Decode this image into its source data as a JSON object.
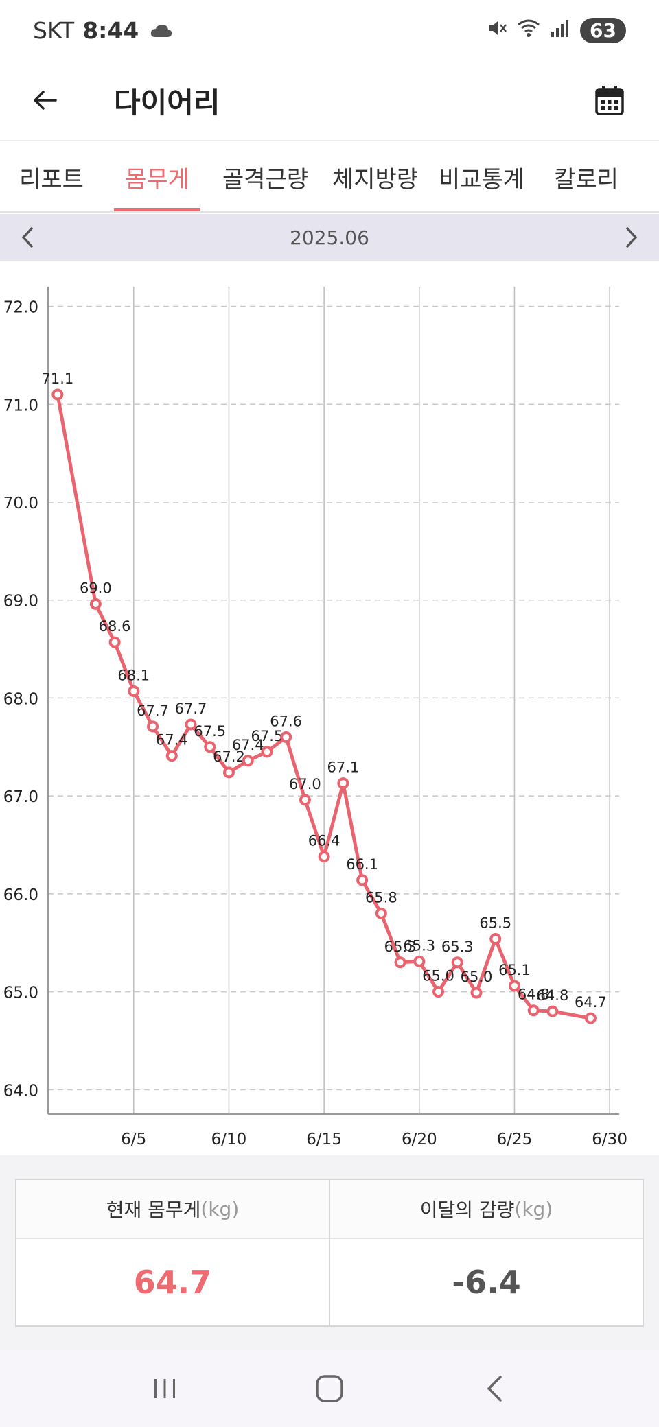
{
  "status": {
    "carrier": "SKT",
    "time": "8:44",
    "battery": "63",
    "weather_icon": "cloud-icon"
  },
  "header": {
    "title": "다이어리"
  },
  "tabs": [
    {
      "label": "리포트",
      "active": false
    },
    {
      "label": "몸무게",
      "active": true
    },
    {
      "label": "골격근량",
      "active": false
    },
    {
      "label": "체지방량",
      "active": false
    },
    {
      "label": "비교통계",
      "active": false
    },
    {
      "label": "칼로리",
      "active": false
    }
  ],
  "month": "2025.06",
  "chart_data": {
    "type": "line",
    "y_ticks": [
      "72.0",
      "71.0",
      "70.0",
      "69.0",
      "68.0",
      "67.0",
      "66.0",
      "65.0",
      "64.0"
    ],
    "x_ticks": [
      "6/5",
      "6/10",
      "6/15",
      "6/20",
      "6/25",
      "6/30"
    ],
    "x_tick_days": [
      5,
      10,
      15,
      20,
      25,
      30
    ],
    "xlim": [
      0.5,
      30.5
    ],
    "ylim": [
      63.75,
      72.2
    ],
    "grid": true,
    "color": "#ea6470",
    "points": [
      {
        "x": 1,
        "y": 71.1,
        "label": "71.1"
      },
      {
        "x": 3,
        "y": 68.96,
        "label": "69.0"
      },
      {
        "x": 4,
        "y": 68.57,
        "label": "68.6"
      },
      {
        "x": 5,
        "y": 68.07,
        "label": "68.1"
      },
      {
        "x": 6,
        "y": 67.71,
        "label": "67.7"
      },
      {
        "x": 7,
        "y": 67.41,
        "label": "67.4"
      },
      {
        "x": 8,
        "y": 67.73,
        "label": "67.7"
      },
      {
        "x": 9,
        "y": 67.5,
        "label": "67.5"
      },
      {
        "x": 10,
        "y": 67.24,
        "label": "67.2"
      },
      {
        "x": 11,
        "y": 67.36,
        "label": "67.4"
      },
      {
        "x": 12,
        "y": 67.45,
        "label": "67.5"
      },
      {
        "x": 13,
        "y": 67.6,
        "label": "67.6"
      },
      {
        "x": 14,
        "y": 66.96,
        "label": "67.0"
      },
      {
        "x": 15,
        "y": 66.38,
        "label": "66.4"
      },
      {
        "x": 16,
        "y": 67.13,
        "label": "67.1"
      },
      {
        "x": 17,
        "y": 66.14,
        "label": "66.1"
      },
      {
        "x": 18,
        "y": 65.8,
        "label": "65.8"
      },
      {
        "x": 19,
        "y": 65.3,
        "label": "65.3"
      },
      {
        "x": 20,
        "y": 65.31,
        "label": "65.3"
      },
      {
        "x": 21,
        "y": 65.0,
        "label": "65.0"
      },
      {
        "x": 22,
        "y": 65.3,
        "label": "65.3"
      },
      {
        "x": 23,
        "y": 64.99,
        "label": "65.0"
      },
      {
        "x": 24,
        "y": 65.54,
        "label": "65.5"
      },
      {
        "x": 25,
        "y": 65.06,
        "label": "65.1"
      },
      {
        "x": 26,
        "y": 64.81,
        "label": "64.8"
      },
      {
        "x": 27,
        "y": 64.8,
        "label": "64.8"
      },
      {
        "x": 29,
        "y": 64.73,
        "label": "64.7"
      }
    ]
  },
  "summary": {
    "current": {
      "label": "현재 몸무게",
      "unit": "(kg)",
      "value": "64.7"
    },
    "monthly": {
      "label": "이달의 감량",
      "unit": "(kg)",
      "value": "-6.4"
    }
  }
}
